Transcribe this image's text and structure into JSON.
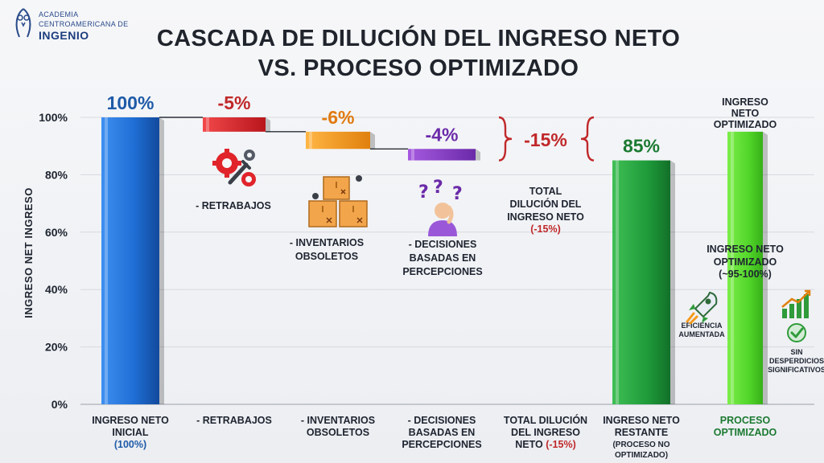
{
  "logo": {
    "line1": "ACADEMIA",
    "line2": "CENTROAMERICANA DE",
    "line3": "INGENIO"
  },
  "title": {
    "line1": "CASCADA DE DILUCIÓN DEL INGRESO NETO",
    "line2": "VS. PROCESO OPTIMIZADO"
  },
  "colors": {
    "blue": "#1f6fd6",
    "red": "#e0242a",
    "orange": "#f59a1c",
    "purple": "#8a3ec8",
    "dark_green": "#1f9b3a",
    "light_green": "#52d62a",
    "value_blue": "#1f5aa8",
    "value_red": "#c0282a",
    "value_orange": "#e07a10",
    "value_purple": "#6a2aa8",
    "value_green": "#1c7a32"
  },
  "chart_data": {
    "type": "bar",
    "subtype": "waterfall",
    "ylabel": "INGRESO NET INGRESO",
    "ylim": [
      0,
      100
    ],
    "yticks": [
      "0%",
      "20%",
      "40%",
      "60%",
      "80%",
      "100%"
    ],
    "grid": true,
    "categories": [
      {
        "lines": [
          "INGRESO NETO",
          "INICIAL"
        ],
        "extra": "(100%)",
        "extra_style": "blue"
      },
      {
        "lines": [
          "- RETRABAJOS"
        ]
      },
      {
        "lines": [
          "- INVENTARIOS",
          "OBSOLETOS"
        ]
      },
      {
        "lines": [
          "- DECISIONES",
          "BASADAS EN",
          "PERCEPCIONES"
        ]
      },
      {
        "lines": [
          "TOTAL DILUCIÓN",
          "DEL INGRESO"
        ],
        "extra": "NETO (-15%)",
        "extra_style": "red"
      },
      {
        "lines": [
          "INGRESO NETO",
          "RESTANTE"
        ],
        "small": [
          "(PROCESO NO",
          "OPTIMIZADO)"
        ]
      },
      {
        "lines": [
          "PROCESO",
          "OPTIMIZADO"
        ],
        "style": "green"
      }
    ],
    "bars": [
      {
        "kind": "total",
        "start": 0,
        "end": 100,
        "label": "100%",
        "color": "blue"
      },
      {
        "kind": "drop",
        "start": 100,
        "end": 95,
        "label": "-5%",
        "color": "red"
      },
      {
        "kind": "drop",
        "start": 95,
        "end": 89,
        "label": "-6%",
        "color": "orange"
      },
      {
        "kind": "drop",
        "start": 89,
        "end": 85,
        "label": "-4%",
        "color": "purple"
      },
      {
        "kind": "bracket",
        "start": 85,
        "end": 100,
        "label": "-15%"
      },
      {
        "kind": "total",
        "start": 0,
        "end": 85,
        "label": "85%",
        "color": "dark_green"
      },
      {
        "kind": "total",
        "start": 0,
        "end": 95,
        "label": "",
        "color": "light_green"
      }
    ],
    "annotations": {
      "retrabajos": "- RETRABAJOS",
      "inventarios": [
        "- INVENTARIOS",
        "OBSOLETOS"
      ],
      "decisiones": [
        "- DECISIONES",
        "BASADAS EN",
        "PERCEPCIONES"
      ],
      "total": [
        "TOTAL",
        "DILUCIÓN DEL",
        "INGRESO NETO"
      ],
      "total_pct": "(-15%)",
      "optimized_top": [
        "INGRESO",
        "NETO",
        "OPTIMIZADO"
      ],
      "optimized_mid": [
        "INGRESO NETO",
        "OPTIMIZADO",
        "(~95-100%)"
      ],
      "eficiencia": [
        "EFICIENCIA",
        "AUMENTADA"
      ],
      "sin_desperdicios": [
        "SIN",
        "DESPERDICIOS",
        "SIGNIFICATIVOS"
      ]
    },
    "icons": [
      "gears-wrench-icon",
      "boxes-bugs-icon",
      "confused-person-icon",
      "rocket-icon",
      "growth-chart-icon",
      "checkmark-badge-icon"
    ]
  }
}
